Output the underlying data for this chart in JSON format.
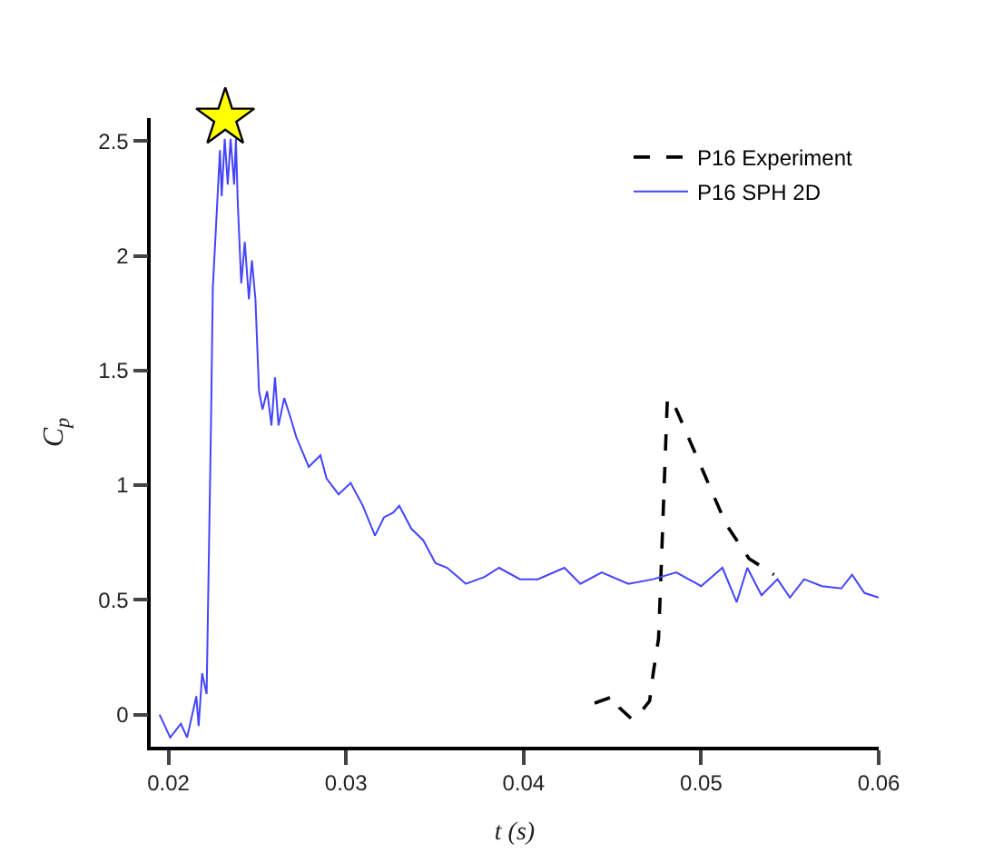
{
  "chart_data": {
    "type": "line",
    "xlabel": "t (s)",
    "ylabel": "C$_{p}$",
    "xlim": [
      0.019,
      0.06
    ],
    "ylim": [
      -0.14,
      2.6
    ],
    "xticks": [
      0.02,
      0.03,
      0.04,
      0.05,
      0.06
    ],
    "yticks": [
      0,
      0.5,
      1,
      1.5,
      2,
      2.5
    ],
    "legend": "top right",
    "marker": "none",
    "series": [
      {
        "name": "P16 Experiment",
        "color": "#000000",
        "line_style": "dashed",
        "x": [
          0.044,
          0.0451,
          0.0454,
          0.0461,
          0.0467,
          0.0471,
          0.0473,
          0.0476,
          0.0477,
          0.0479,
          0.0481,
          0.0486,
          0.05,
          0.0514,
          0.0527,
          0.0541
        ],
        "values": [
          0.05,
          0.08,
          0.03,
          -0.02,
          0.02,
          0.06,
          0.18,
          0.33,
          0.53,
          0.96,
          1.38,
          1.33,
          1.08,
          0.83,
          0.68,
          0.61
        ]
      },
      {
        "name": "P16 SPH 2D",
        "color": "#4444ff",
        "line_style": "solid",
        "x": [
          0.0195,
          0.0201,
          0.0207,
          0.02105,
          0.02157,
          0.0217,
          0.0219,
          0.02215,
          0.0224,
          0.0225,
          0.0227,
          0.0229,
          0.023,
          0.02317,
          0.02334,
          0.0235,
          0.0237,
          0.0238,
          0.0239,
          0.0241,
          0.0243,
          0.02453,
          0.0247,
          0.0249,
          0.0251,
          0.0253,
          0.02556,
          0.0258,
          0.026,
          0.0262,
          0.02652,
          0.02685,
          0.0272,
          0.0279,
          0.02856,
          0.0289,
          0.02958,
          0.03026,
          0.03095,
          0.03163,
          0.03214,
          0.03265,
          0.033,
          0.03368,
          0.03435,
          0.03504,
          0.0357,
          0.03675,
          0.0378,
          0.03862,
          0.0398,
          0.0408,
          0.0423,
          0.0432,
          0.0444,
          0.0459,
          0.0473,
          0.0486,
          0.05,
          0.0512,
          0.052,
          0.0526,
          0.0534,
          0.0543,
          0.055,
          0.0558,
          0.0568,
          0.0579,
          0.0585,
          0.0592,
          0.06
        ],
        "values": [
          0.0,
          -0.1,
          -0.04,
          -0.1,
          0.08,
          -0.05,
          0.18,
          0.09,
          1.28,
          1.86,
          2.16,
          2.46,
          2.26,
          2.51,
          2.31,
          2.51,
          2.31,
          2.51,
          2.24,
          1.88,
          2.06,
          1.81,
          1.98,
          1.81,
          1.41,
          1.33,
          1.41,
          1.26,
          1.47,
          1.26,
          1.38,
          1.3,
          1.21,
          1.08,
          1.13,
          1.03,
          0.96,
          1.01,
          0.91,
          0.78,
          0.86,
          0.88,
          0.91,
          0.81,
          0.76,
          0.66,
          0.64,
          0.57,
          0.6,
          0.64,
          0.59,
          0.59,
          0.64,
          0.57,
          0.62,
          0.57,
          0.59,
          0.62,
          0.56,
          0.64,
          0.49,
          0.64,
          0.52,
          0.59,
          0.51,
          0.59,
          0.56,
          0.55,
          0.61,
          0.53,
          0.51
        ]
      },
      {
        "type": "scatter",
        "marker": "star",
        "color": "#ffff00",
        "x": [
          0.0232
        ],
        "values": [
          2.6
        ]
      }
    ]
  }
}
